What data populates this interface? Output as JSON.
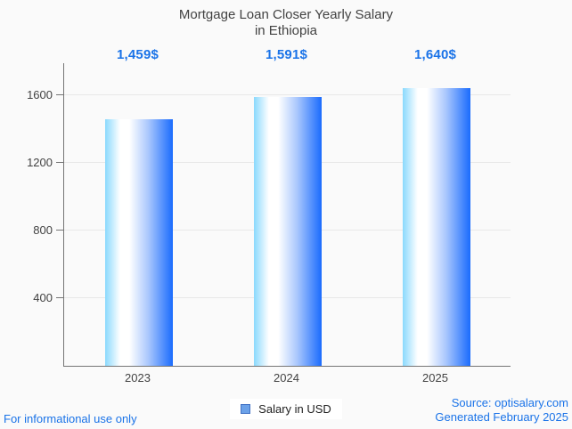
{
  "header": {
    "title_line1": "Mortgage Loan Closer Yearly Salary",
    "title_line2": "in Ethiopia"
  },
  "chart_data": {
    "type": "bar",
    "title": "Mortgage Loan Closer Yearly Salary in Ethiopia",
    "categories": [
      "2023",
      "2024",
      "2025"
    ],
    "values": [
      1459,
      1591,
      1640
    ],
    "value_labels": [
      "1,459$",
      "1,591$",
      "1,640$"
    ],
    "series_name": "Salary in USD",
    "xlabel": "",
    "ylabel": "",
    "ylim": [
      0,
      1789
    ],
    "yticks": [
      400,
      800,
      1200,
      1600
    ],
    "grid": "horizontal",
    "legend_position": "bottom"
  },
  "legend": {
    "label": "Salary in USD"
  },
  "footer": {
    "left": "For informational use only",
    "source": "Source: optisalary.com",
    "generated": "Generated February 2025"
  },
  "colors": {
    "accent": "#1a73e8",
    "titlecolor": "#424242",
    "textcolor": "#424242",
    "axiscolor": "#757575",
    "gridcolor": "#e8e8e8",
    "legendfill": "#6ba1e8",
    "legendborder": "#4272c4",
    "legendtext": "#212121",
    "bar_left": "#8ad9fd",
    "bar_mid": "#ffffff",
    "bar_soft": "#a9c7fd",
    "bar_right": "#1a6bfd"
  }
}
